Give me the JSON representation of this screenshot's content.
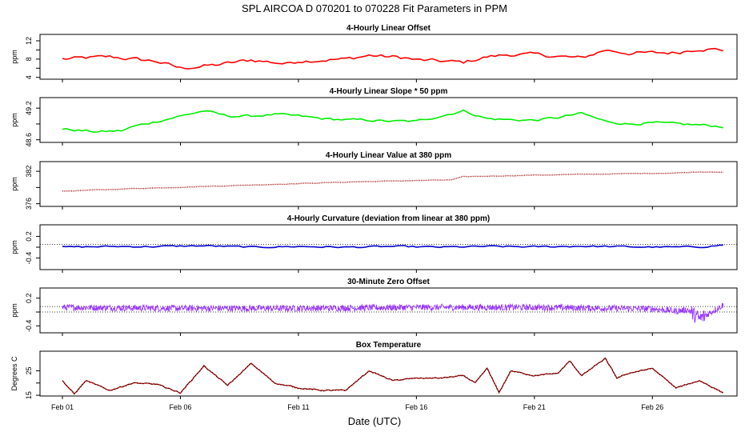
{
  "chart_data": {
    "type": "line",
    "title": "SPL   AIRCOA D   070201 to 070228   Fit Parameters in PPM",
    "xlabel": "Date (UTC)",
    "x_range_days": [
      0,
      28.3
    ],
    "x_ticks": [
      {
        "day": 0,
        "label": "Feb 01"
      },
      {
        "day": 5,
        "label": "Feb 06"
      },
      {
        "day": 10,
        "label": "Feb 11"
      },
      {
        "day": 15,
        "label": "Feb 16"
      },
      {
        "day": 20,
        "label": "Feb 21"
      },
      {
        "day": 25,
        "label": "Feb 26"
      }
    ],
    "panels": [
      {
        "id": "offset",
        "title": "4-Hourly Linear Offset",
        "ylabel": "ppm",
        "ylim": [
          3.6,
          13.4
        ],
        "yticks": [
          4,
          8,
          12
        ],
        "yticks_minor": [
          6,
          10
        ],
        "color": "#ff0000",
        "style": "line",
        "reflines": [],
        "series": {
          "x": [
            0,
            2,
            4,
            5,
            6.5,
            8,
            9.5,
            10,
            12,
            13,
            14.5,
            15,
            17,
            18,
            19,
            20,
            22,
            23,
            24,
            26,
            27,
            28
          ],
          "y": [
            8,
            8.5,
            7.5,
            6,
            6.7,
            7.8,
            7,
            7.6,
            8,
            8.8,
            8.3,
            7.8,
            7.3,
            8.5,
            9,
            9,
            8.2,
            10,
            9.3,
            9.4,
            10.3,
            10
          ]
        }
      },
      {
        "id": "slope",
        "title": "4-Hourly Linear Slope * 50 ppm",
        "ylabel": "ppm",
        "ylim": [
          48.55,
          49.4
        ],
        "yticks": [
          48.6,
          49.2
        ],
        "yticks_minor": [
          48.9
        ],
        "color": "#00ee00",
        "style": "line",
        "reflines": [],
        "series": {
          "x": [
            0,
            1.5,
            2.5,
            3,
            4,
            5,
            6,
            7,
            8,
            9,
            10,
            11,
            12,
            13,
            14,
            15,
            16,
            17,
            18,
            19,
            20,
            21,
            22,
            23,
            24,
            25,
            26,
            27,
            28
          ],
          "y": [
            48.8,
            48.75,
            48.77,
            48.85,
            48.95,
            49.05,
            49.15,
            49.05,
            49.05,
            49.08,
            49.05,
            49,
            48.98,
            48.97,
            48.95,
            48.95,
            49.05,
            49.15,
            49,
            48.98,
            48.97,
            49.02,
            49.1,
            48.95,
            48.9,
            48.92,
            48.9,
            48.88,
            48.85
          ]
        }
      },
      {
        "id": "value380",
        "title": "4-Hourly Linear Value at 380 ppm",
        "ylabel": "ppm",
        "ylim": [
          375.5,
          383.8
        ],
        "yticks": [
          376,
          382
        ],
        "yticks_minor": [
          379
        ],
        "color": "#990000",
        "style": "dots",
        "reflines": [],
        "series": {
          "x": [
            0,
            3,
            6,
            9,
            12,
            15,
            16.5,
            17,
            20,
            23,
            26,
            27,
            28
          ],
          "y": [
            378.3,
            378.8,
            379.2,
            379.6,
            380,
            380.3,
            380.4,
            381,
            381.3,
            381.5,
            381.7,
            381.9,
            381.9
          ]
        }
      },
      {
        "id": "curvature",
        "title": "4-Hourly Curvature (deviation from linear at 380 ppm)",
        "ylabel": "ppm",
        "ylim": [
          -0.72,
          0.52
        ],
        "yticks": [
          -0.4,
          0.2
        ],
        "yticks_minor": [
          -0.1
        ],
        "color": "#0000cc",
        "style": "line",
        "reflines": [
          -0.02
        ],
        "series": {
          "x": [
            0,
            2,
            4,
            6,
            8,
            10,
            12,
            14,
            16,
            18,
            20,
            22,
            24,
            26,
            27,
            28
          ],
          "y": [
            -0.1,
            -0.08,
            -0.08,
            -0.06,
            -0.1,
            -0.08,
            -0.1,
            -0.08,
            -0.1,
            -0.08,
            -0.09,
            -0.07,
            -0.09,
            -0.1,
            -0.09,
            -0.04
          ]
        }
      },
      {
        "id": "zero",
        "title": "30-Minute Zero Offset",
        "ylabel": "ppm",
        "ylim": [
          -0.55,
          0.42
        ],
        "yticks": [
          -0.4,
          0.2
        ],
        "yticks_minor": [
          -0.1
        ],
        "color": "#9933ff",
        "style": "noisy",
        "reflines": [
          0.02,
          -0.1
        ],
        "series": {
          "x": [
            0,
            5,
            10,
            15,
            20,
            25,
            26,
            26.5,
            27,
            27.5,
            28
          ],
          "y": [
            0,
            -0.02,
            -0.02,
            0,
            0,
            -0.03,
            -0.08,
            -0.05,
            -0.25,
            -0.1,
            0.05
          ]
        }
      },
      {
        "id": "boxtemp",
        "title": "Box Temperature",
        "ylabel": "Degrees C",
        "ylim": [
          14.7,
          33
        ],
        "yticks": [
          15,
          25
        ],
        "yticks_minor": [
          20
        ],
        "color": "#aa0000",
        "style": "dotted-line",
        "reflines": [],
        "series": {
          "x": [
            0,
            0.5,
            1,
            2,
            3,
            4,
            5,
            6,
            7,
            8,
            9,
            10,
            11,
            12,
            13,
            14,
            15,
            16,
            17,
            17.5,
            18,
            18.5,
            19,
            20,
            21,
            21.5,
            22,
            23,
            23.5,
            24,
            25,
            26,
            27,
            28
          ],
          "y": [
            21,
            15.5,
            21,
            17,
            20,
            19.5,
            16,
            27,
            19,
            28,
            20,
            18,
            17,
            17,
            25,
            21,
            22,
            22,
            23,
            20,
            26,
            16,
            25,
            23,
            24,
            29,
            23,
            30,
            22,
            24,
            26,
            18,
            21,
            16
          ]
        }
      }
    ]
  }
}
